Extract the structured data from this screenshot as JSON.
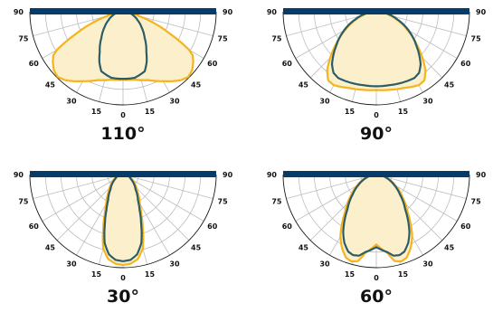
{
  "colors": {
    "bar": "#073b6a",
    "grid": "#bdbdbd",
    "outline": "#1a1a1a",
    "fill": "#fcf0cc",
    "yellow": "#f5b31c",
    "teal": "#2c5d66"
  },
  "chart_data": [
    {
      "type": "polar",
      "caption": "110°",
      "angle_ticks": [
        "90",
        "75",
        "60",
        "45",
        "30",
        "15",
        "0",
        "15",
        "30",
        "45",
        "60",
        "75",
        "90"
      ],
      "series": [
        {
          "color": "yellow",
          "angles": [
            0,
            10,
            20,
            30,
            40,
            45,
            50,
            55,
            58,
            60,
            65,
            70,
            75,
            80,
            90
          ],
          "r": [
            0.73,
            0.74,
            0.78,
            0.86,
            0.96,
            0.99,
            0.97,
            0.92,
            0.88,
            0.82,
            0.55,
            0.35,
            0.18,
            0.1,
            0.06
          ]
        },
        {
          "color": "teal",
          "angles": [
            0,
            10,
            20,
            25,
            30,
            40,
            50,
            60,
            70,
            80,
            90
          ],
          "r": [
            0.72,
            0.72,
            0.68,
            0.6,
            0.5,
            0.36,
            0.26,
            0.18,
            0.12,
            0.07,
            0.04
          ]
        }
      ]
    },
    {
      "type": "polar",
      "caption": "90°",
      "angle_ticks": [
        "90",
        "75",
        "60",
        "45",
        "30",
        "15",
        "0",
        "15",
        "30",
        "45",
        "60",
        "75",
        "90"
      ],
      "series": [
        {
          "color": "yellow",
          "angles": [
            0,
            10,
            20,
            30,
            35,
            40,
            45,
            50,
            60,
            70,
            80,
            90
          ],
          "r": [
            0.84,
            0.85,
            0.87,
            0.91,
            0.9,
            0.82,
            0.7,
            0.58,
            0.38,
            0.22,
            0.1,
            0.04
          ]
        },
        {
          "color": "teal",
          "angles": [
            0,
            10,
            20,
            30,
            35,
            40,
            50,
            60,
            70,
            80,
            90
          ],
          "r": [
            0.8,
            0.8,
            0.81,
            0.82,
            0.8,
            0.74,
            0.56,
            0.4,
            0.24,
            0.12,
            0.05
          ]
        }
      ]
    },
    {
      "type": "polar",
      "caption": "30°",
      "angle_ticks": [
        "90",
        "75",
        "60",
        "45",
        "30",
        "15",
        "0",
        "15",
        "30",
        "45",
        "60",
        "75",
        "90"
      ],
      "series": [
        {
          "color": "yellow",
          "angles": [
            0,
            5,
            10,
            15,
            20,
            25,
            30,
            40,
            50,
            60,
            70,
            80,
            90
          ],
          "r": [
            0.97,
            0.96,
            0.92,
            0.82,
            0.62,
            0.46,
            0.36,
            0.24,
            0.17,
            0.12,
            0.08,
            0.05,
            0.03
          ]
        },
        {
          "color": "teal",
          "angles": [
            0,
            5,
            10,
            15,
            20,
            25,
            30,
            40,
            50,
            60,
            70,
            80,
            90
          ],
          "r": [
            0.93,
            0.92,
            0.87,
            0.76,
            0.57,
            0.42,
            0.32,
            0.21,
            0.15,
            0.1,
            0.07,
            0.04,
            0.02
          ]
        }
      ]
    },
    {
      "type": "polar",
      "caption": "60°",
      "angle_ticks": [
        "90",
        "75",
        "60",
        "45",
        "30",
        "15",
        "0",
        "15",
        "30",
        "45",
        "60",
        "75",
        "90"
      ],
      "series": [
        {
          "color": "yellow",
          "angles": [
            0,
            8,
            12,
            16,
            20,
            25,
            30,
            35,
            40,
            50,
            60,
            70,
            80,
            90
          ],
          "r": [
            0.75,
            0.85,
            0.95,
            0.97,
            0.95,
            0.87,
            0.77,
            0.64,
            0.52,
            0.36,
            0.24,
            0.14,
            0.07,
            0.03
          ]
        },
        {
          "color": "teal",
          "angles": [
            0,
            8,
            12,
            16,
            20,
            25,
            30,
            35,
            40,
            50,
            60,
            70,
            80,
            90
          ],
          "r": [
            0.78,
            0.84,
            0.89,
            0.9,
            0.88,
            0.81,
            0.71,
            0.59,
            0.48,
            0.33,
            0.22,
            0.13,
            0.06,
            0.03
          ]
        }
      ]
    }
  ]
}
